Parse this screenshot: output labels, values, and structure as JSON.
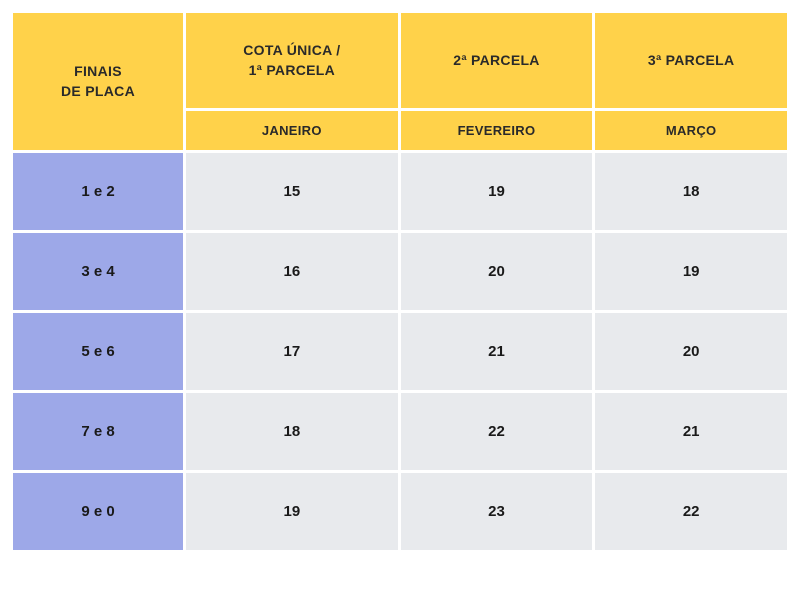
{
  "table": {
    "type": "table",
    "header_bg": "#ffd24a",
    "rowlabel_bg": "#9da8e8",
    "cell_bg": "#e8eaed",
    "text_color": "#1a1a1a",
    "border_spacing": 3,
    "font_family": "Arial",
    "header_fontsize": 14,
    "cell_fontsize": 15,
    "columns": {
      "rowheader_line1": "FINAIS",
      "rowheader_line2": "DE PLACA",
      "col1_line1": "COTA ÚNICA /",
      "col1_line2": "1ª PARCELA",
      "col2": "2ª PARCELA",
      "col3": "3ª PARCELA",
      "month1": "JANEIRO",
      "month2": "FEVEREIRO",
      "month3": "MARÇO"
    },
    "rows": [
      {
        "label": "1 e 2",
        "c1": "15",
        "c2": "19",
        "c3": "18"
      },
      {
        "label": "3 e 4",
        "c1": "16",
        "c2": "20",
        "c3": "19"
      },
      {
        "label": "5 e 6",
        "c1": "17",
        "c2": "21",
        "c3": "20"
      },
      {
        "label": "7 e 8",
        "c1": "18",
        "c2": "22",
        "c3": "21"
      },
      {
        "label": "9 e 0",
        "c1": "19",
        "c2": "23",
        "c3": "22"
      }
    ]
  }
}
